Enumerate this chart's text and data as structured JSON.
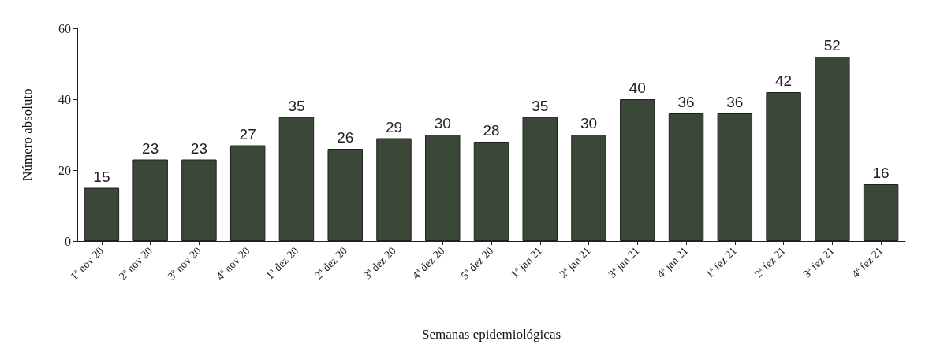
{
  "chart_data": {
    "type": "bar",
    "xlabel": "Semanas epidemiológicas",
    "ylabel": "Número absoluto",
    "categories": [
      "1ª nov 20",
      "2ª nov 20",
      "3ª nov 20",
      "4ª nov 20",
      "1ª dez 20",
      "2ª dez 20",
      "3ª dez 20",
      "4ª dez 20",
      "5ª dez 20",
      "1ª jan 21",
      "2ª jan 21",
      "3ª jan 21",
      "4ª jan 21",
      "1ª fez 21",
      "2ª fez 21",
      "3ª fez 21",
      "4ª fez 21"
    ],
    "values": [
      15,
      23,
      23,
      27,
      35,
      26,
      29,
      30,
      28,
      35,
      30,
      40,
      36,
      36,
      42,
      52,
      16
    ],
    "color": "#3b4738",
    "ylim": [
      0,
      60
    ],
    "yticks": [
      0,
      20,
      40,
      60
    ],
    "data_labels": true,
    "grid": false
  }
}
